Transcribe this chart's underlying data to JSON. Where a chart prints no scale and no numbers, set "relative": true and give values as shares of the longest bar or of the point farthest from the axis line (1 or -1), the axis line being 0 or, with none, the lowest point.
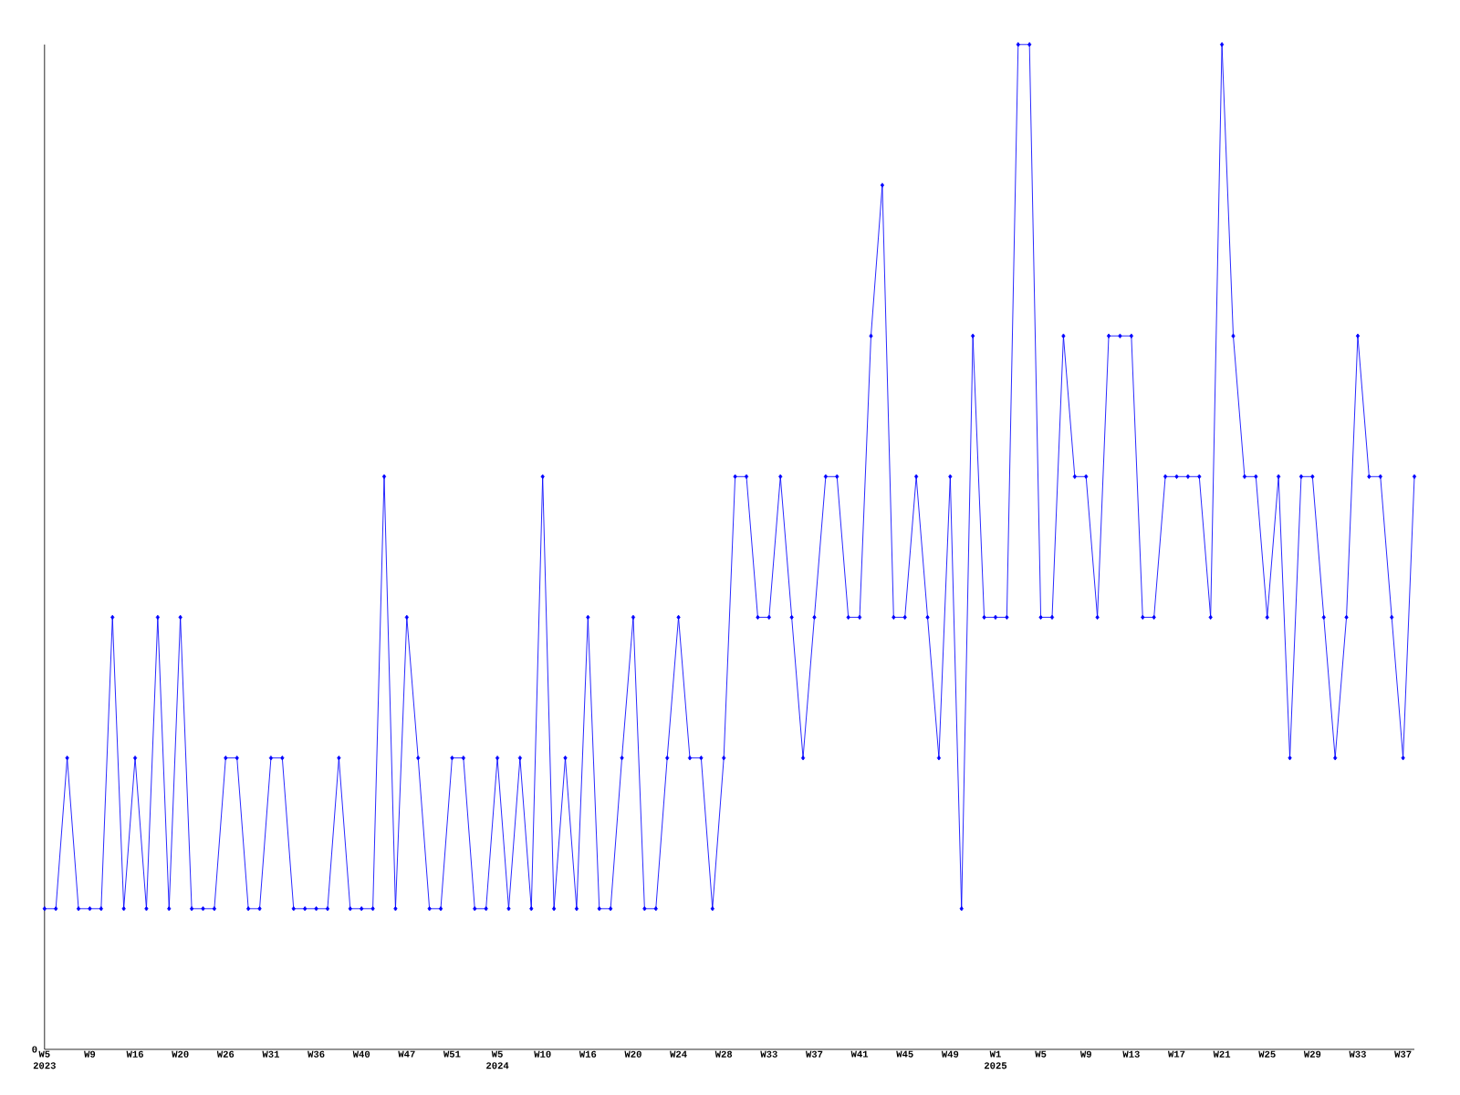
{
  "chart_data": {
    "type": "line",
    "relative": true,
    "color": "#0000ff",
    "marker": "diamond",
    "grid": false,
    "categories": [
      "W5 2023",
      null,
      null,
      null,
      "W9",
      null,
      null,
      null,
      "W16",
      null,
      null,
      null,
      "W20",
      null,
      null,
      null,
      "W26",
      null,
      null,
      null,
      "W31",
      null,
      null,
      null,
      "W36",
      null,
      null,
      null,
      "W40",
      null,
      null,
      null,
      "W47",
      null,
      null,
      null,
      "W51",
      null,
      null,
      null,
      "W5 2024",
      null,
      null,
      null,
      "W10",
      null,
      null,
      null,
      "W16",
      null,
      null,
      null,
      "W20",
      null,
      null,
      null,
      "W24",
      null,
      null,
      null,
      "W28",
      null,
      null,
      null,
      "W33",
      null,
      null,
      null,
      "W37",
      null,
      null,
      null,
      "W41",
      null,
      null,
      null,
      "W45",
      null,
      null,
      null,
      "W49",
      null,
      null,
      null,
      "W1 2025",
      null,
      null,
      null,
      "W5",
      null,
      null,
      null,
      "W9",
      null,
      null,
      null,
      "W13",
      null,
      null,
      null,
      "W17",
      null,
      null,
      null,
      "W21",
      null,
      null,
      null,
      "W25",
      null,
      null,
      null,
      "W29",
      null,
      null,
      null,
      "W33",
      null,
      null,
      null,
      "W37",
      null
    ],
    "values": [
      0.14,
      0.14,
      0.29,
      0.14,
      0.14,
      0.14,
      0.43,
      0.14,
      0.29,
      0.14,
      0.43,
      0.14,
      0.43,
      0.14,
      0.14,
      0.14,
      0.29,
      0.29,
      0.14,
      0.14,
      0.29,
      0.29,
      0.14,
      0.14,
      0.14,
      0.14,
      0.29,
      0.14,
      0.14,
      0.14,
      0.57,
      0.14,
      0.43,
      0.29,
      0.14,
      0.14,
      0.29,
      0.29,
      0.14,
      0.14,
      0.29,
      0.14,
      0.29,
      0.14,
      0.57,
      0.14,
      0.29,
      0.14,
      0.43,
      0.14,
      0.14,
      0.29,
      0.43,
      0.14,
      0.14,
      0.29,
      0.43,
      0.29,
      0.29,
      0.14,
      0.29,
      0.57,
      0.57,
      0.43,
      0.43,
      0.57,
      0.43,
      0.29,
      0.43,
      0.57,
      0.57,
      0.43,
      0.43,
      0.71,
      0.86,
      0.43,
      0.43,
      0.57,
      0.43,
      0.29,
      0.57,
      0.14,
      0.71,
      0.43,
      0.43,
      0.43,
      1,
      1,
      0.43,
      0.43,
      0.71,
      0.57,
      0.57,
      0.43,
      0.71,
      0.71,
      0.71,
      0.43,
      0.43,
      0.57,
      0.57,
      0.57,
      0.57,
      0.43,
      1,
      0.71,
      0.57,
      0.57,
      0.43,
      0.57,
      0.29,
      0.57,
      0.57,
      0.43,
      0.29,
      0.43,
      0.71,
      0.57,
      0.57,
      0.43,
      0.29,
      0.57
    ],
    "annotations": [
      "0"
    ]
  }
}
